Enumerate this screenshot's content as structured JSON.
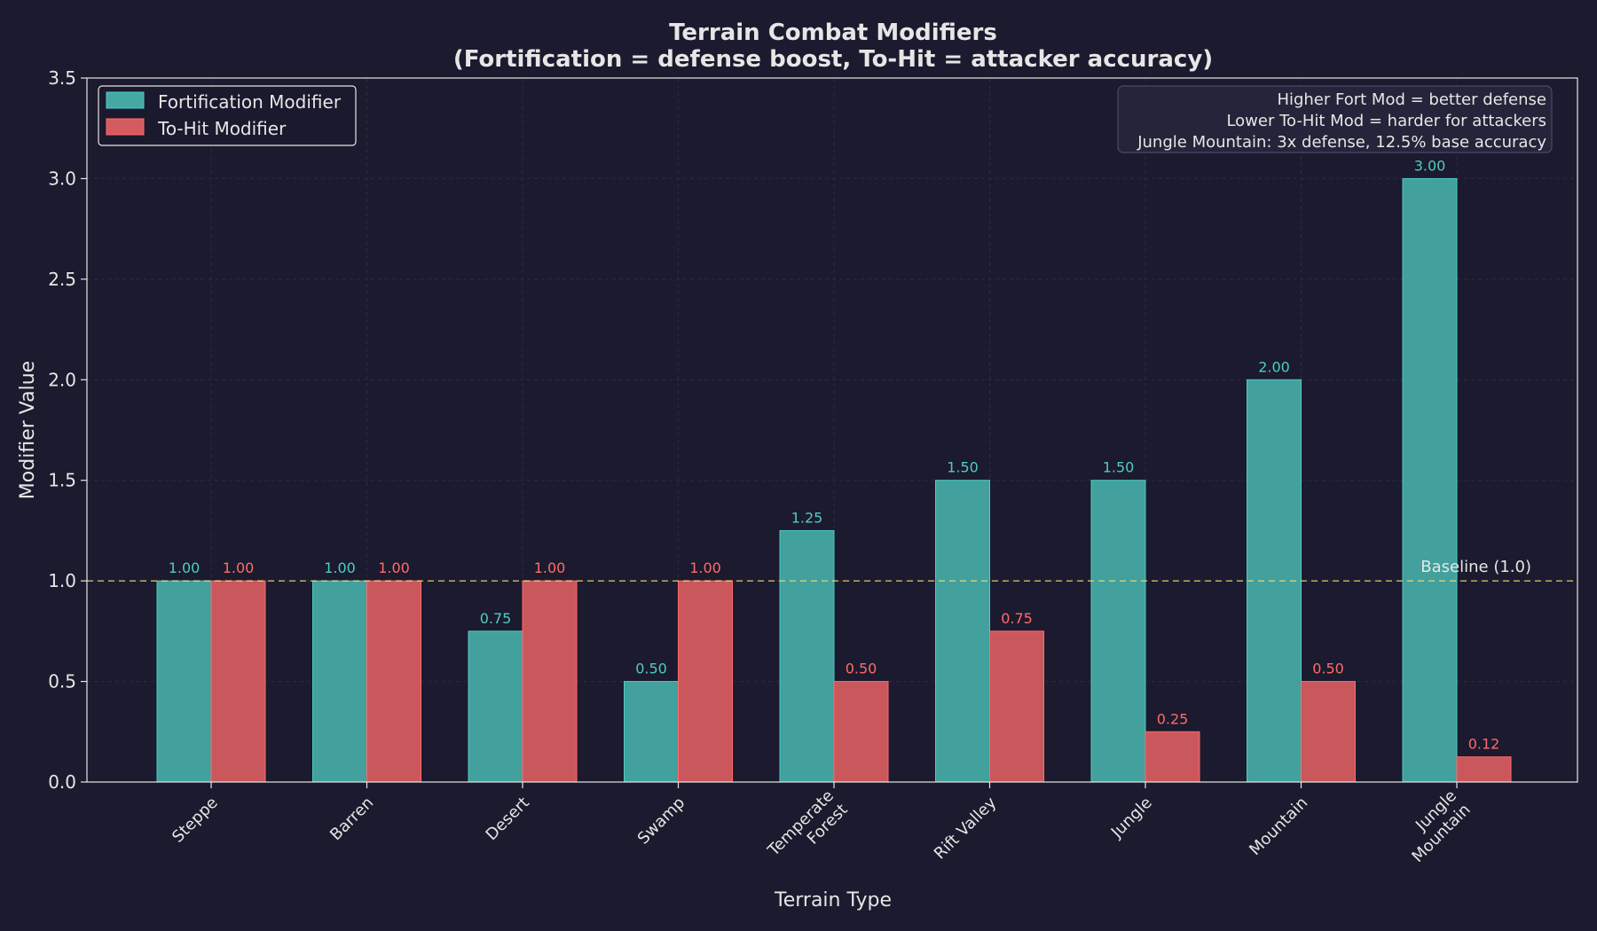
{
  "colors": {
    "background": "#1b1a2e",
    "fort": "#45a8a3",
    "fort_edge": "#4ecdc4",
    "tohit": "#d45b5f",
    "tohit_edge": "#ff6b6b",
    "fort_label": "#4ecdc4",
    "tohit_label": "#ff6b6b",
    "baseline": "#f7dc6f",
    "text": "#e6e6e6",
    "grid": "#2c2b44"
  },
  "chart_data": {
    "type": "bar",
    "title_line1": "Terrain Combat Modifiers",
    "title_line2": "(Fortification = defense boost, To-Hit = attacker accuracy)",
    "xlabel": "Terrain Type",
    "ylabel": "Modifier Value",
    "ylim": [
      0,
      3.5
    ],
    "yticks": [
      "0.0",
      "0.5",
      "1.0",
      "1.5",
      "2.0",
      "2.5",
      "3.0",
      "3.5"
    ],
    "grid": true,
    "categories": [
      [
        "Steppe"
      ],
      [
        "Barren"
      ],
      [
        "Desert"
      ],
      [
        "Swamp"
      ],
      [
        "Temperate",
        "Forest"
      ],
      [
        "Rift Valley"
      ],
      [
        "Jungle"
      ],
      [
        "Mountain"
      ],
      [
        "Jungle",
        "Mountain"
      ]
    ],
    "series": [
      {
        "name": "Fortification Modifier",
        "values": [
          1.0,
          1.0,
          0.75,
          0.5,
          1.25,
          1.5,
          1.5,
          2.0,
          3.0
        ],
        "labels": [
          "1.00",
          "1.00",
          "0.75",
          "0.50",
          "1.25",
          "1.50",
          "1.50",
          "2.00",
          "3.00"
        ]
      },
      {
        "name": "To-Hit Modifier",
        "values": [
          1.0,
          1.0,
          1.0,
          1.0,
          0.5,
          0.75,
          0.25,
          0.5,
          0.125
        ],
        "labels": [
          "1.00",
          "1.00",
          "1.00",
          "1.00",
          "0.50",
          "0.75",
          "0.25",
          "0.50",
          "0.12"
        ]
      }
    ],
    "baseline": {
      "value": 1.0,
      "label": "Baseline (1.0)"
    },
    "legend_position": "top-left",
    "annotation_lines": [
      "Higher Fort Mod = better defense",
      "Lower To-Hit Mod = harder for attackers",
      "Jungle Mountain: 3x defense, 12.5% base accuracy"
    ],
    "annotation_position": "top-right"
  }
}
